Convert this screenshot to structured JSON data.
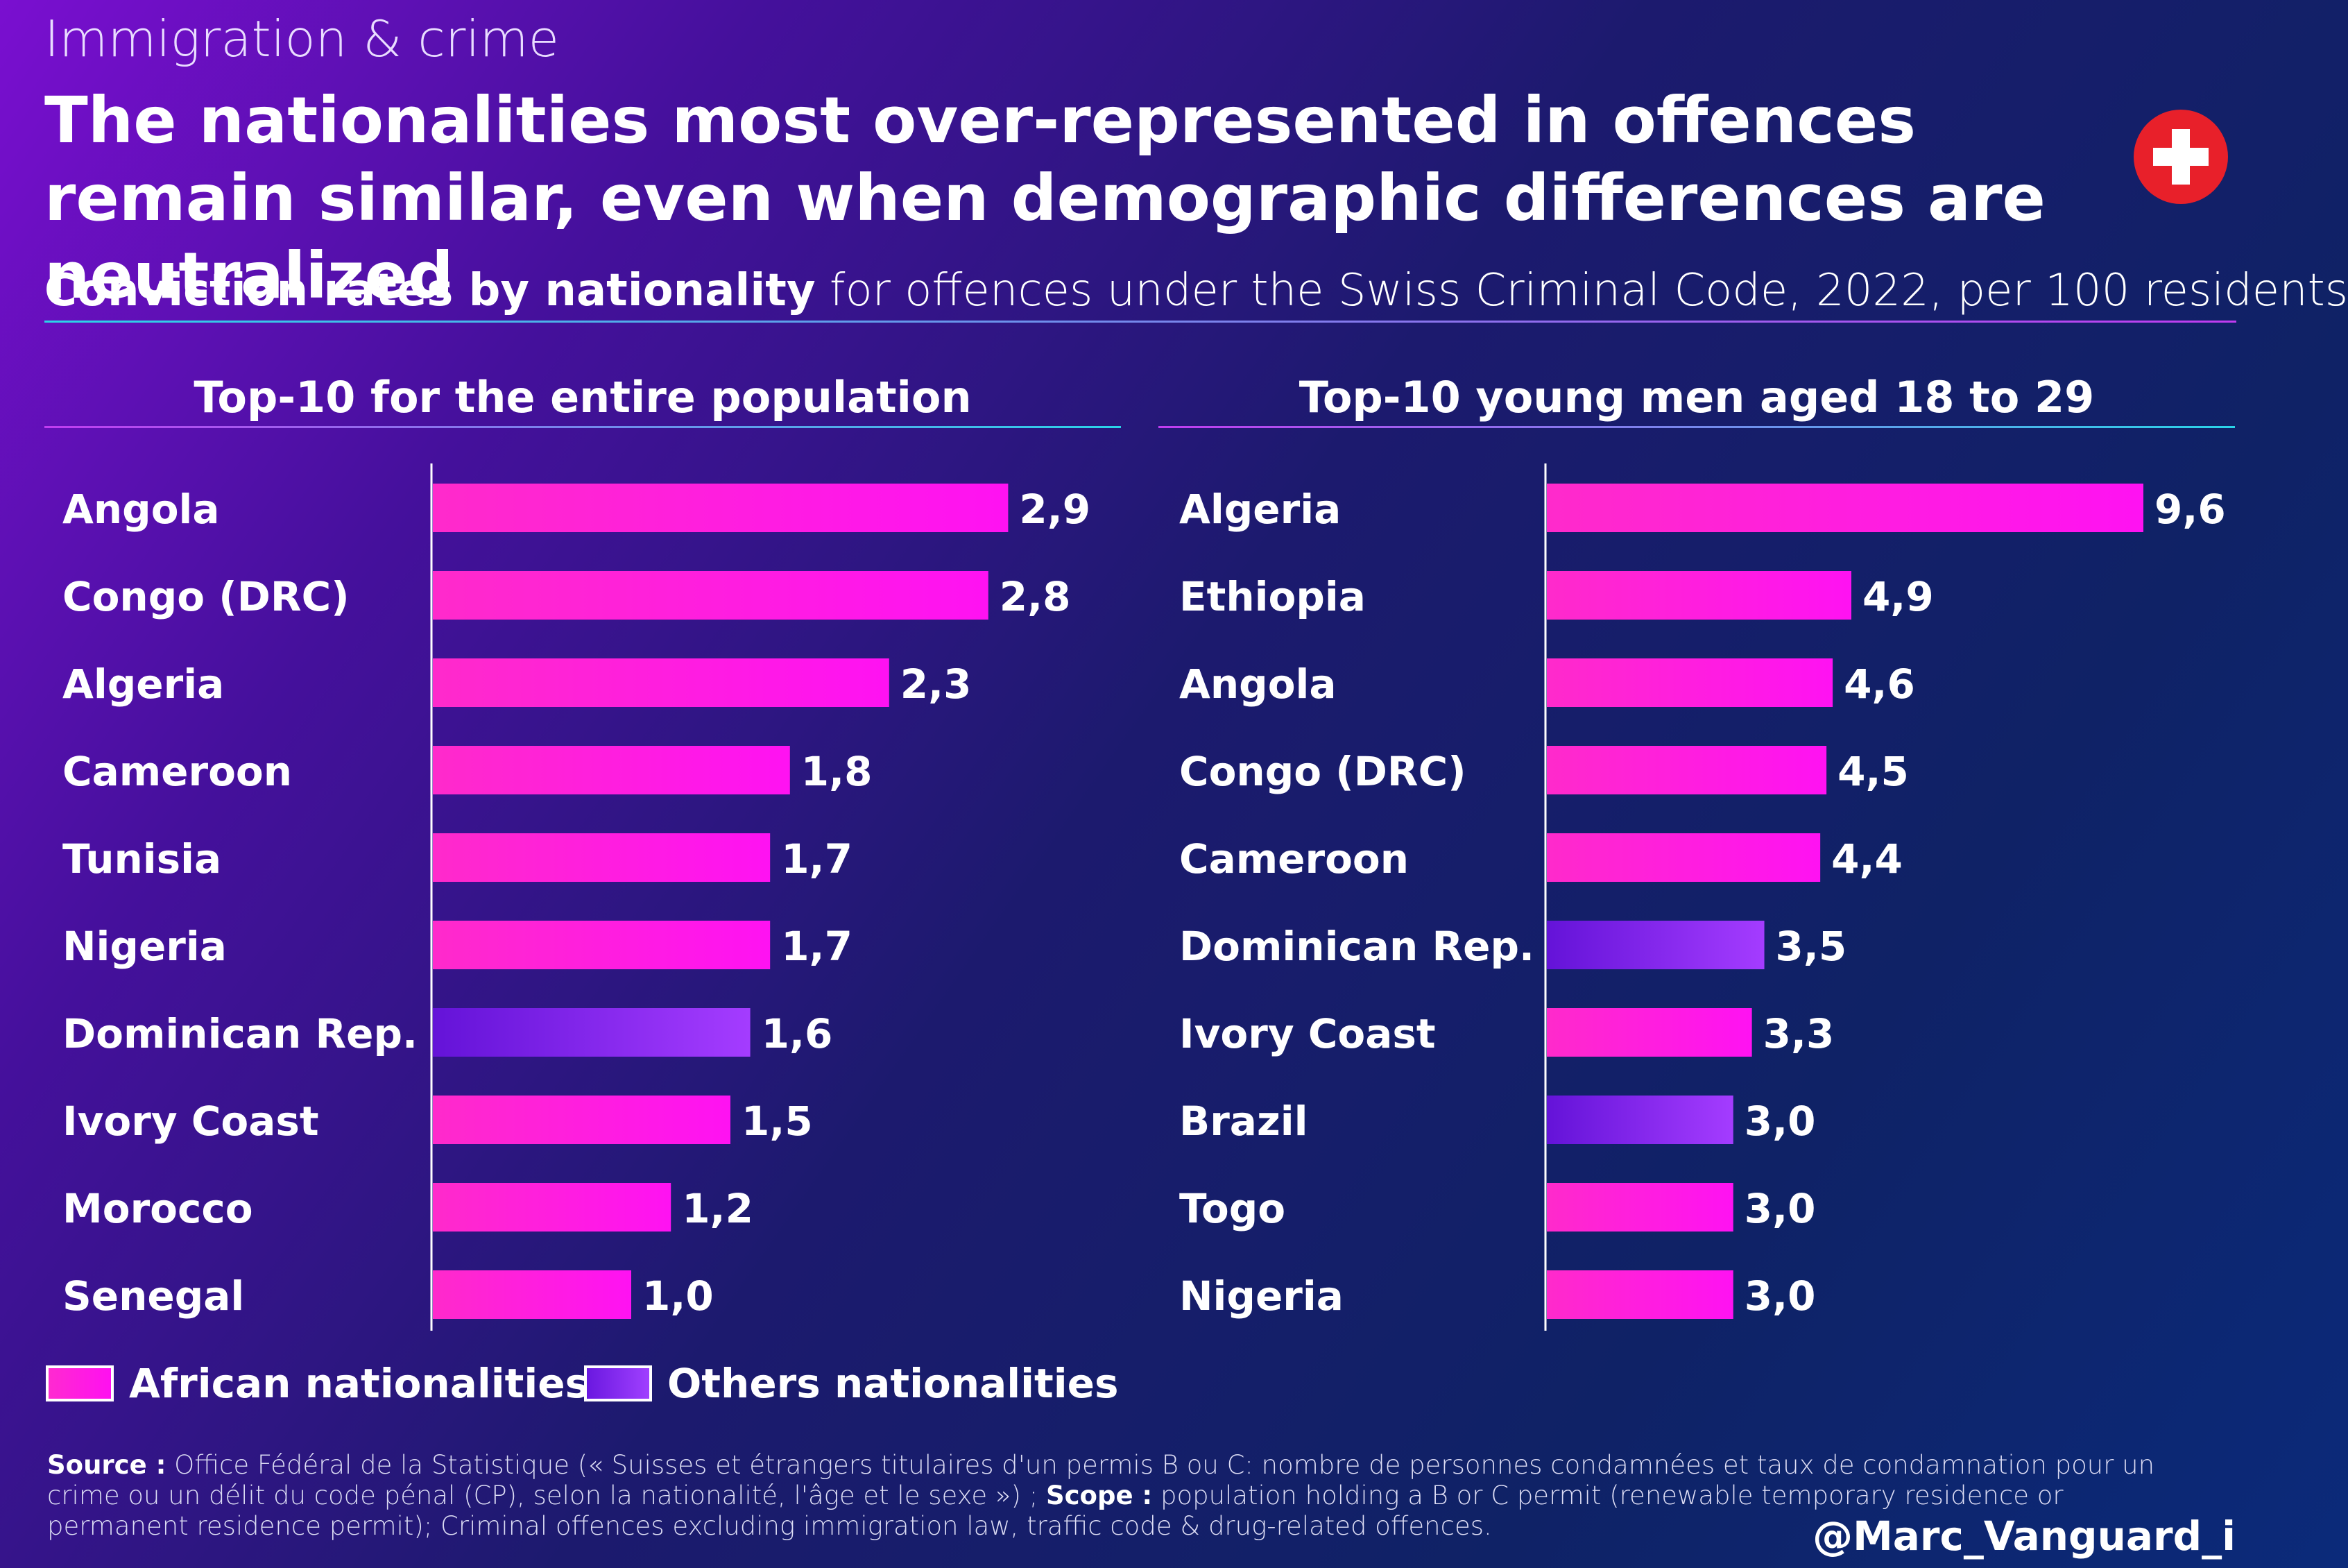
{
  "header": {
    "kicker": "Immigration & crime",
    "title": "The nationalities most over-represented in offences remain similar, even when demographic differences are neutralized",
    "subtitle_bold": "Conviction rates by nationality",
    "subtitle_rest": " for offences under the Swiss Criminal Code, 2022, per 100 residents",
    "flag_icon": "swiss-flag-icon"
  },
  "colors": {
    "african": "#ff1ee0",
    "others": "#8a30f5"
  },
  "chart_data": [
    {
      "type": "bar",
      "orientation": "horizontal",
      "title": "Top-10 for the entire population",
      "xlim": [
        0,
        3.0
      ],
      "categories": [
        "Angola",
        "Congo (DRC)",
        "Algeria",
        "Cameroon",
        "Tunisia",
        "Nigeria",
        "Dominican Rep.",
        "Ivory Coast",
        "Morocco",
        "Senegal"
      ],
      "values": [
        2.9,
        2.8,
        2.3,
        1.8,
        1.7,
        1.7,
        1.6,
        1.5,
        1.2,
        1.0
      ],
      "labels": [
        "2,9",
        "2,8",
        "2,3",
        "1,8",
        "1,7",
        "1,7",
        "1,6",
        "1,5",
        "1,2",
        "1,0"
      ],
      "groups": [
        "african",
        "african",
        "african",
        "african",
        "african",
        "african",
        "others",
        "african",
        "african",
        "african"
      ]
    },
    {
      "type": "bar",
      "orientation": "horizontal",
      "title": "Top-10 young men aged 18 to 29",
      "xlim": [
        0,
        9.6
      ],
      "categories": [
        "Algeria",
        "Ethiopia",
        "Angola",
        "Congo (DRC)",
        "Cameroon",
        "Dominican Rep.",
        "Ivory Coast",
        "Brazil",
        "Togo",
        "Nigeria"
      ],
      "values": [
        9.6,
        4.9,
        4.6,
        4.5,
        4.4,
        3.5,
        3.3,
        3.0,
        3.0,
        3.0
      ],
      "labels": [
        "9,6",
        "4,9",
        "4,6",
        "4,5",
        "4,4",
        "3,5",
        "3,3",
        "3,0",
        "3,0",
        "3,0"
      ],
      "groups": [
        "african",
        "african",
        "african",
        "african",
        "african",
        "others",
        "african",
        "others",
        "african",
        "african"
      ]
    }
  ],
  "legend": {
    "african": "African nationalities",
    "others": "Others nationalities"
  },
  "footer": {
    "source_label": "Source :",
    "source_text": " Office Fédéral de la Statistique (« Suisses et étrangers titulaires d'un permis B ou C: nombre de personnes condamnées et taux de condamnation pour un crime ou un délit du code pénal (CP), selon la nationalité, l'âge et le sexe ») ; ",
    "scope_label": "Scope :",
    "scope_text": " population holding a B or C permit (renewable temporary residence or permanent residence permit); Criminal offences excluding immigration law, traffic code & drug-related offences.",
    "handle": "@Marc_Vanguard_i"
  }
}
